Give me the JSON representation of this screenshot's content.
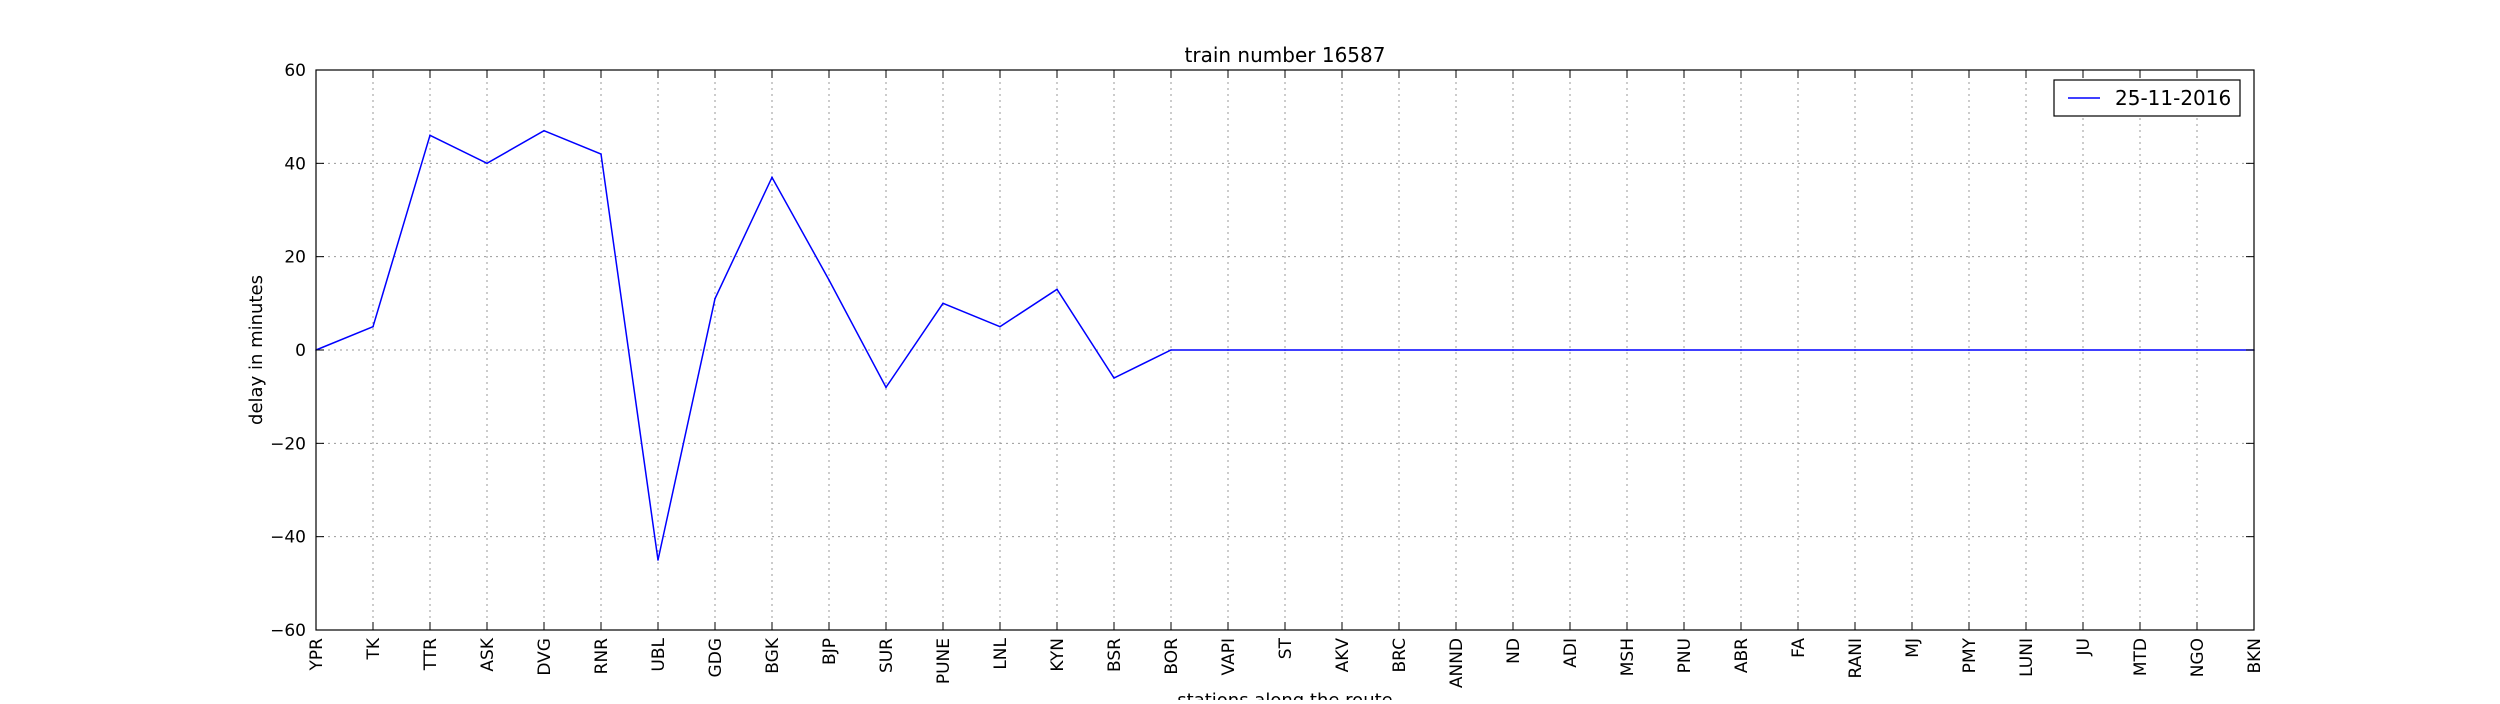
{
  "chart_data": {
    "type": "line",
    "title": "train number 16587",
    "xlabel": "stations along the route",
    "ylabel": "delay in minutes",
    "ylim": [
      -60,
      60
    ],
    "yticks": [
      -60,
      -40,
      -20,
      0,
      20,
      40,
      60
    ],
    "ytick_labels": [
      "−60",
      "−40",
      "−20",
      "0",
      "20",
      "40",
      "60"
    ],
    "grid": true,
    "legend_position": "top-right",
    "categories": [
      "YPR",
      "TK",
      "TTR",
      "ASK",
      "DVG",
      "RNR",
      "UBL",
      "GDG",
      "BGK",
      "BJP",
      "SUR",
      "PUNE",
      "LNL",
      "KYN",
      "BSR",
      "BOR",
      "VAPI",
      "ST",
      "AKV",
      "BRC",
      "ANND",
      "ND",
      "ADI",
      "MSH",
      "PNU",
      "ABR",
      "FA",
      "RANI",
      "MJ",
      "PMY",
      "LUNI",
      "JU",
      "MTD",
      "NGO",
      "BKN"
    ],
    "series": [
      {
        "name": "25-11-2016",
        "color": "#0000ff",
        "values": [
          0,
          5,
          46,
          40,
          47,
          42,
          -45,
          11,
          37,
          15,
          -8,
          10,
          5,
          13,
          -6,
          0,
          0,
          0,
          0,
          0,
          0,
          0,
          0,
          0,
          0,
          0,
          0,
          0,
          0,
          0,
          0,
          0,
          0,
          0,
          0
        ]
      }
    ]
  }
}
